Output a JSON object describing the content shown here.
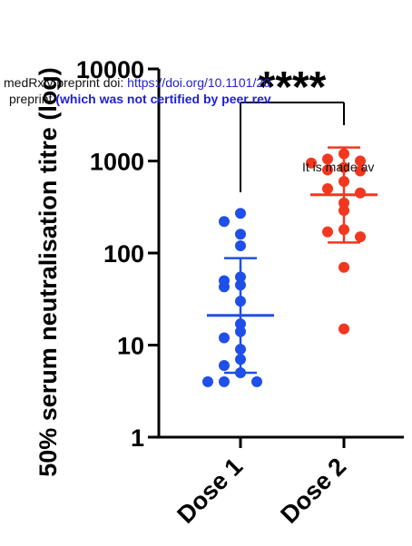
{
  "chart_data": {
    "type": "scatter",
    "ylabel": "50% serum neutralisation titre (log)",
    "yscale": "log",
    "ylim": [
      1,
      10000
    ],
    "y_ticks": [
      "1",
      "10",
      "100",
      "1000",
      "10000"
    ],
    "categories": [
      "Dose 1",
      "Dose 2"
    ],
    "significance": "****",
    "series": [
      {
        "category": "Dose 1",
        "color": "#1f4fe8",
        "points": [
          270,
          220,
          160,
          120,
          55,
          50,
          45,
          43,
          30,
          17,
          14,
          12,
          9,
          7,
          6,
          5,
          4,
          4,
          4
        ],
        "mean": 21,
        "error": [
          5,
          88
        ]
      },
      {
        "category": "Dose 2",
        "color": "#f2371f",
        "points": [
          1200,
          1050,
          1000,
          950,
          850,
          800,
          780,
          600,
          500,
          450,
          350,
          290,
          180,
          170,
          150,
          70,
          15
        ],
        "mean": 430,
        "error": [
          130,
          1400
        ]
      }
    ]
  },
  "watermark": {
    "line1_prefix": "medRxiv preprint doi: ",
    "line1_url": "https://doi.org/10.1101/20",
    "line2_prefix": "preprint ",
    "line2_bold": "(which was not certified by peer rev",
    "line3": "It is made av"
  }
}
